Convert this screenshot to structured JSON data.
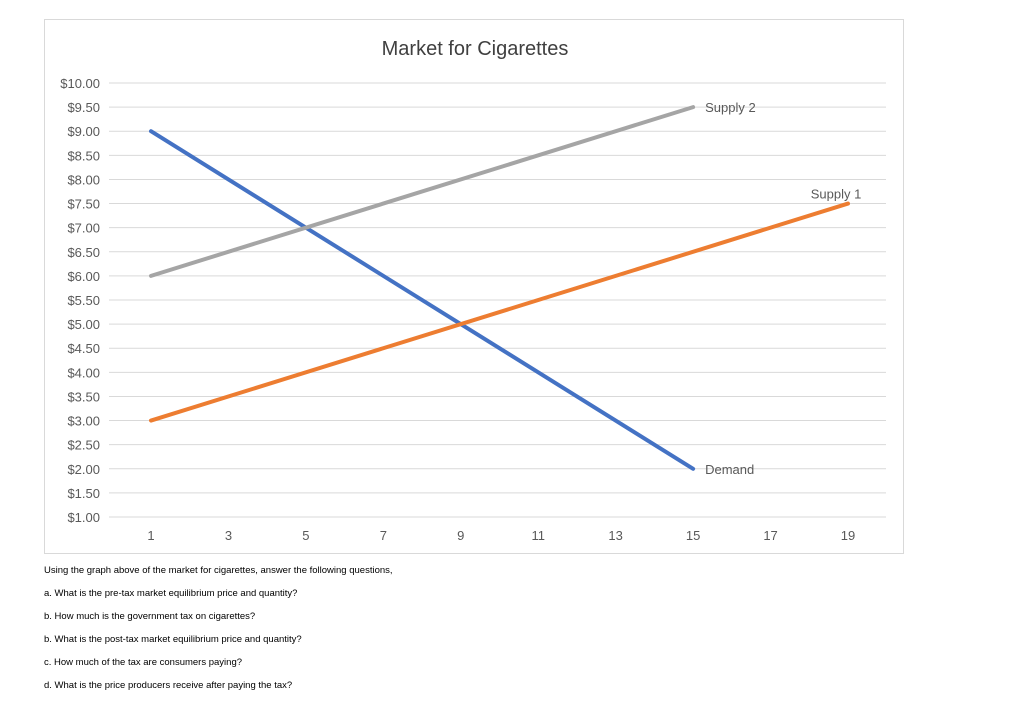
{
  "chart_data": {
    "type": "line",
    "title": "Market for Cigarettes",
    "xlabel": "",
    "ylabel": "",
    "xlim": [
      1,
      19
    ],
    "ylim": [
      1.0,
      10.0
    ],
    "x_ticks": [
      1,
      3,
      5,
      7,
      9,
      11,
      13,
      15,
      17,
      19
    ],
    "y_ticks": [
      "$1.00",
      "$1.50",
      "$2.00",
      "$2.50",
      "$3.00",
      "$3.50",
      "$4.00",
      "$4.50",
      "$5.00",
      "$5.50",
      "$6.00",
      "$6.50",
      "$7.00",
      "$7.50",
      "$8.00",
      "$8.50",
      "$9.00",
      "$9.50",
      "$10.00"
    ],
    "y_tick_values": [
      1.0,
      1.5,
      2.0,
      2.5,
      3.0,
      3.5,
      4.0,
      4.5,
      5.0,
      5.5,
      6.0,
      6.5,
      7.0,
      7.5,
      8.0,
      8.5,
      9.0,
      9.5,
      10.0
    ],
    "grid": true,
    "series": [
      {
        "name": "Demand",
        "color": "#4472c4",
        "x": [
          1,
          15
        ],
        "y": [
          9.0,
          2.0
        ]
      },
      {
        "name": "Supply 1",
        "color": "#ed7d31",
        "x": [
          1,
          19
        ],
        "y": [
          3.0,
          7.5
        ]
      },
      {
        "name": "Supply 2",
        "color": "#a5a5a5",
        "x": [
          1,
          15
        ],
        "y": [
          6.0,
          9.5
        ]
      }
    ]
  },
  "questions": [
    "Using the graph above of the market for cigarettes, answer the following questions,",
    "a. What is the pre-tax market equilibrium price and quantity?",
    "b. How much is the government tax on cigarettes?",
    "b. What is the post-tax market equilibrium price and quantity?",
    "c. How much of the tax are consumers paying?",
    "d. What is the price producers receive after paying the tax?"
  ]
}
